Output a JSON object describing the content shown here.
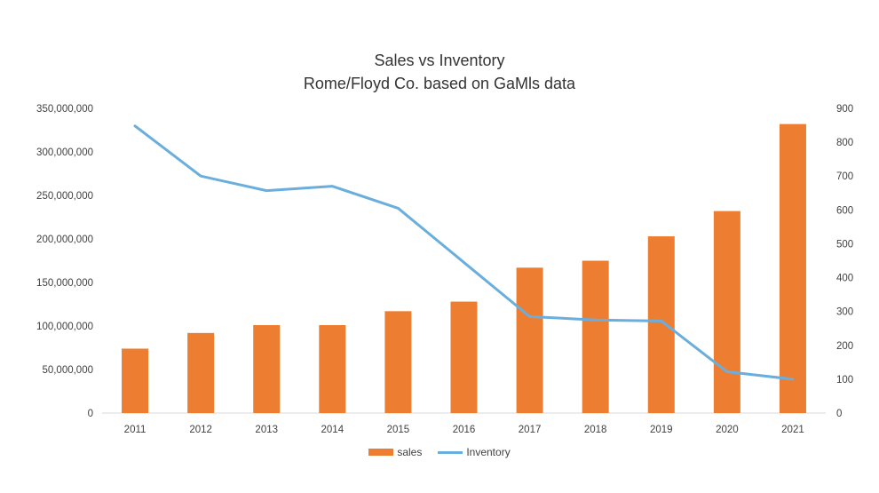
{
  "chart_data": {
    "type": "bar",
    "title": "Sales vs Inventory",
    "subtitle": "Rome/Floyd Co. based on GaMls data",
    "categories": [
      "2011",
      "2012",
      "2013",
      "2014",
      "2015",
      "2016",
      "2017",
      "2018",
      "2019",
      "2020",
      "2021"
    ],
    "series": [
      {
        "name": "sales",
        "type": "bar",
        "axis": "left",
        "color": "#ED7D31",
        "values": [
          74000000,
          92000000,
          101000000,
          101000000,
          117000000,
          128000000,
          167000000,
          175000000,
          203000000,
          232000000,
          332000000
        ]
      },
      {
        "name": "Inventory",
        "type": "line",
        "axis": "right",
        "color": "#6AAEDD",
        "values": [
          848,
          700,
          657,
          670,
          605,
          445,
          285,
          275,
          272,
          122,
          100
        ]
      }
    ],
    "y_left": {
      "min": 0,
      "max": 350000000,
      "ticks": [
        0,
        50000000,
        100000000,
        150000000,
        200000000,
        250000000,
        300000000,
        350000000
      ],
      "tick_labels": [
        "0",
        "50,000,000",
        "100,000,000",
        "150,000,000",
        "200,000,000",
        "250,000,000",
        "300,000,000",
        "350,000,000"
      ]
    },
    "y_right": {
      "min": 0,
      "max": 900,
      "ticks": [
        0,
        100,
        200,
        300,
        400,
        500,
        600,
        700,
        800,
        900
      ],
      "tick_labels": [
        "0",
        "100",
        "200",
        "300",
        "400",
        "500",
        "600",
        "700",
        "800",
        "900"
      ]
    },
    "grid": false,
    "legend_position": "bottom"
  }
}
